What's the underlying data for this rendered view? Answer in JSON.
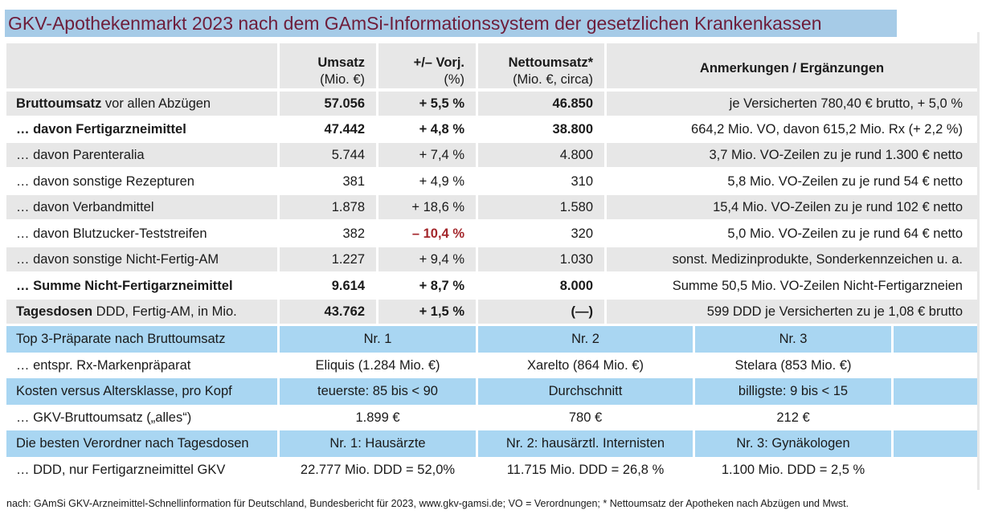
{
  "title": "GKV-Apothekenmarkt 2023 nach dem GAmSi-Informationssystem der gesetzlichen Krankenkassen",
  "header": {
    "col1_line1": "Umsatz",
    "col1_line2": "(Mio. €)",
    "col2_line1": "+/– Vorj.",
    "col2_line2": "(%)",
    "col3_line1": "Nettoumsatz*",
    "col3_line2": "(Mio. €, circa)",
    "col4_line1": "Anmerkungen / Ergänzungen"
  },
  "rows": [
    {
      "label_bold": "Bruttoumsatz",
      "label_rest": " vor allen Abzügen",
      "umsatz": "57.056",
      "delta": "+ 5,5 %",
      "netto": "46.850",
      "note": "je Versicherten 780,40 € brutto, + 5,0 %"
    },
    {
      "label_bold": "… davon Fertigarzneimittel",
      "label_rest": "",
      "umsatz": "47.442",
      "delta": "+ 4,8 %",
      "netto": "38.800",
      "note": "664,2 Mio. VO, davon 615,2 Mio. Rx (+ 2,2 %)"
    },
    {
      "label_bold": "",
      "label_rest": "… davon Parenteralia",
      "umsatz": "5.744",
      "delta": "+ 7,4 %",
      "netto": "4.800",
      "note": "3,7 Mio. VO-Zeilen zu je rund 1.300 € netto"
    },
    {
      "label_bold": "",
      "label_rest": "… davon sonstige Rezepturen",
      "umsatz": "381",
      "delta": "+ 4,9 %",
      "netto": "310",
      "note": "5,8 Mio. VO-Zeilen zu je rund 54 € netto"
    },
    {
      "label_bold": "",
      "label_rest": "… davon Verbandmittel",
      "umsatz": "1.878",
      "delta": "+ 18,6 %",
      "netto": "1.580",
      "note": "15,4 Mio. VO-Zeilen zu je rund 102 € netto"
    },
    {
      "label_bold": "",
      "label_rest": "… davon Blutzucker-Teststreifen",
      "umsatz": "382",
      "delta": "– 10,4 %",
      "netto": "320",
      "note": "5,0 Mio. VO-Zeilen zu je rund 64 € netto"
    },
    {
      "label_bold": "",
      "label_rest": "… davon sonstige Nicht-Fertig-AM",
      "umsatz": "1.227",
      "delta": "+ 9,4 %",
      "netto": "1.030",
      "note": "sonst. Medizinprodukte, Sonderkennzeichen u. a."
    },
    {
      "label_bold": "… Summe Nicht-Fertigarzneimittel",
      "label_rest": "",
      "umsatz": "9.614",
      "delta": "+ 8,7 %",
      "netto": "8.000",
      "note": "Summe 50,5 Mio. VO-Zeilen Nicht-Fertigarzneien"
    },
    {
      "label_bold": "Tagesdosen",
      "label_rest": " DDD, Fertig-AM, in Mio.",
      "umsatz": "43.762",
      "delta": "+ 1,5 %",
      "netto": "(—)",
      "note": "599 DDD je Versicherten zu je 1,08 € brutto"
    }
  ],
  "sections": [
    {
      "label": "Top 3-Präparate nach Bruttoumsatz",
      "c1": "Nr. 1",
      "c2": "Nr. 2",
      "c3": "Nr. 3",
      "sub_label": "… entspr. Rx-Markenpräparat",
      "s1": "Eliquis (1.284 Mio. €)",
      "s2": "Xarelto (864 Mio. €)",
      "s3": "Stelara (853 Mio. €)"
    },
    {
      "label": "Kosten versus Altersklasse, pro Kopf",
      "c1": "teuerste: 85 bis < 90",
      "c2": "Durchschnitt",
      "c3": "billigste: 9 bis < 15",
      "sub_label": "… GKV-Bruttoumsatz („alles“)",
      "s1": "1.899 €",
      "s2": "780 €",
      "s3": "212 €"
    },
    {
      "label": "Die besten Verordner nach Tagesdosen",
      "c1": "Nr. 1: Hausärzte",
      "c2": "Nr. 2: hausärztl. Internisten",
      "c3": "Nr. 3: Gynäkologen",
      "sub_label": "… DDD, nur Fertigarzneimittel GKV",
      "s1": "22.777 Mio. DDD = 52,0%",
      "s2": "11.715 Mio. DDD = 26,8 %",
      "s3": "1.100 Mio. DDD = 2,5 %"
    }
  ],
  "footnote": "nach: GAmSi GKV-Arzneimittel-Schnellinformation für Deutschland, Bundesbericht für 2023, www.gkv-gamsi.de; VO = Verordnungen; * Nettoumsatz der Apotheken nach Abzügen und Mwst."
}
